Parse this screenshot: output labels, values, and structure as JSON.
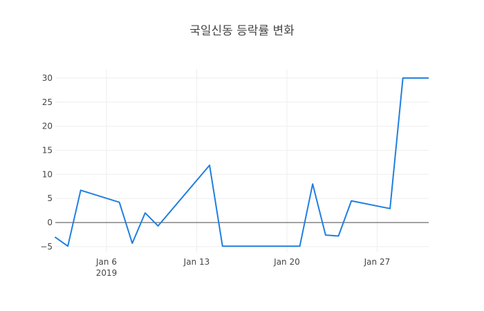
{
  "chart_data": {
    "type": "line",
    "title": "국일신동 등락률 변화",
    "xlabel": "",
    "ylabel": "",
    "x": [
      "2019-01-02",
      "2019-01-03",
      "2019-01-04",
      "2019-01-07",
      "2019-01-08",
      "2019-01-09",
      "2019-01-10",
      "2019-01-14",
      "2019-01-15",
      "2019-01-21",
      "2019-01-22",
      "2019-01-23",
      "2019-01-24",
      "2019-01-25",
      "2019-01-28",
      "2019-01-29",
      "2019-01-31"
    ],
    "series": [
      {
        "name": "등락률",
        "color": "#1f7ee0",
        "values": [
          -3.0,
          -4.9,
          6.7,
          4.2,
          -4.3,
          2.0,
          -0.7,
          11.9,
          -4.9,
          -4.9,
          8.0,
          -2.6,
          -2.8,
          4.5,
          2.9,
          30.0,
          30.0
        ]
      }
    ],
    "ylim": [
      -5,
      32
    ],
    "yticks": [
      30,
      25,
      20,
      15,
      10,
      5,
      0,
      -5
    ],
    "ytick_labels": [
      "30",
      "25",
      "20",
      "15",
      "10",
      "5",
      "0",
      "−5"
    ],
    "xticks": [
      "2019-01-06",
      "2019-01-13",
      "2019-01-20",
      "2019-01-27"
    ],
    "xtick_labels": [
      "Jan 6",
      "Jan 13",
      "Jan 20",
      "Jan 27"
    ],
    "xtick_sublabel": "2019",
    "grid": true,
    "legend": false
  }
}
